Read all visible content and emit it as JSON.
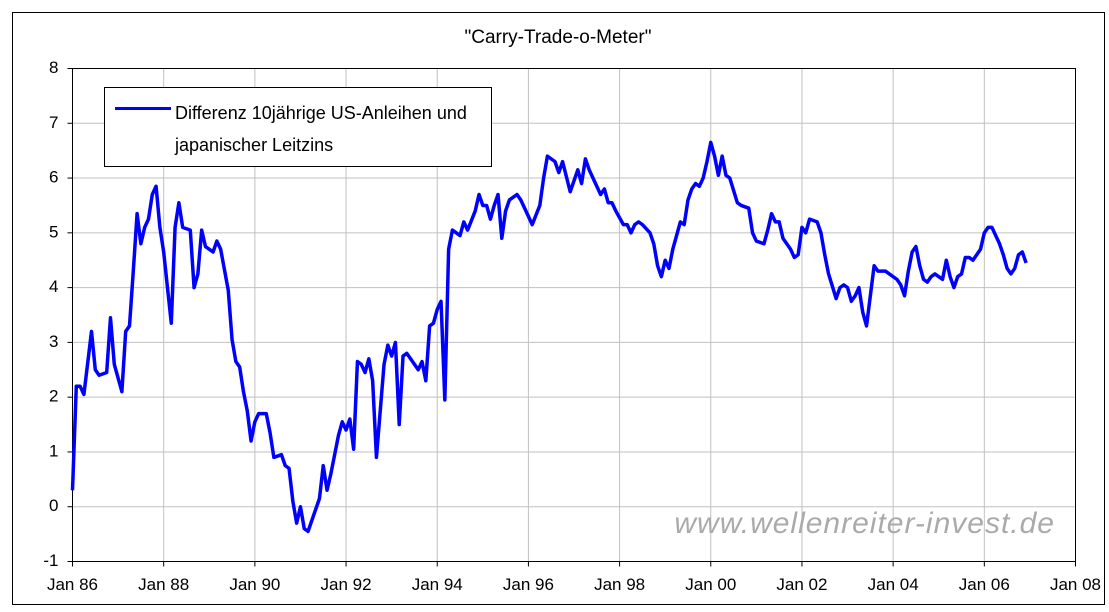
{
  "chart_data": {
    "type": "line",
    "title": "\"Carry-Trade-o-Meter\"",
    "annotation": "www.wellenreiter-invest.de",
    "x": [
      "1986-01",
      "1986-02",
      "1986-03",
      "1986-04",
      "1986-06",
      "1986-07",
      "1986-08",
      "1986-10",
      "1986-11",
      "1986-12",
      "1987-02",
      "1987-03",
      "1987-04",
      "1987-05",
      "1987-06",
      "1987-07",
      "1987-08",
      "1987-09",
      "1987-10",
      "1987-11",
      "1987-12",
      "1988-01",
      "1988-03",
      "1988-04",
      "1988-05",
      "1988-06",
      "1988-08",
      "1988-09",
      "1988-10",
      "1988-11",
      "1988-12",
      "1989-02",
      "1989-03",
      "1989-04",
      "1989-06",
      "1989-07",
      "1989-08",
      "1989-09",
      "1989-10",
      "1989-11",
      "1989-12",
      "1990-01",
      "1990-02",
      "1990-04",
      "1990-05",
      "1990-06",
      "1990-08",
      "1990-09",
      "1990-10",
      "1990-11",
      "1990-12",
      "1991-01",
      "1991-02",
      "1991-03",
      "1991-05",
      "1991-06",
      "1991-07",
      "1991-08",
      "1991-09",
      "1991-10",
      "1991-11",
      "1991-12",
      "1992-01",
      "1992-02",
      "1992-03",
      "1992-04",
      "1992-05",
      "1992-06",
      "1992-07",
      "1992-08",
      "1992-09",
      "1992-11",
      "1992-12",
      "1993-01",
      "1993-02",
      "1993-03",
      "1993-04",
      "1993-05",
      "1993-07",
      "1993-08",
      "1993-09",
      "1993-10",
      "1993-11",
      "1993-12",
      "1994-01",
      "1994-02",
      "1994-03",
      "1994-04",
      "1994-05",
      "1994-07",
      "1994-08",
      "1994-09",
      "1994-11",
      "1994-12",
      "1995-01",
      "1995-02",
      "1995-03",
      "1995-04",
      "1995-05",
      "1995-06",
      "1995-07",
      "1995-08",
      "1995-10",
      "1995-11",
      "1996-01",
      "1996-02",
      "1996-04",
      "1996-05",
      "1996-06",
      "1996-08",
      "1996-09",
      "1996-10",
      "1996-12",
      "1997-01",
      "1997-02",
      "1997-03",
      "1997-04",
      "1997-05",
      "1997-07",
      "1997-08",
      "1997-09",
      "1997-10",
      "1997-11",
      "1997-12",
      "1998-02",
      "1998-03",
      "1998-04",
      "1998-05",
      "1998-06",
      "1998-07",
      "1998-09",
      "1998-10",
      "1998-11",
      "1998-12",
      "1999-01",
      "1999-02",
      "1999-03",
      "1999-05",
      "1999-06",
      "1999-07",
      "1999-08",
      "1999-09",
      "1999-10",
      "1999-11",
      "1999-12",
      "2000-01",
      "2000-02",
      "2000-03",
      "2000-04",
      "2000-05",
      "2000-06",
      "2000-08",
      "2000-09",
      "2000-11",
      "2000-12",
      "2001-01",
      "2001-03",
      "2001-04",
      "2001-05",
      "2001-06",
      "2001-07",
      "2001-08",
      "2001-10",
      "2001-11",
      "2001-12",
      "2002-01",
      "2002-02",
      "2002-03",
      "2002-05",
      "2002-06",
      "2002-07",
      "2002-08",
      "2002-10",
      "2002-11",
      "2002-12",
      "2003-01",
      "2003-02",
      "2003-03",
      "2003-04",
      "2003-05",
      "2003-06",
      "2003-07",
      "2003-08",
      "2003-09",
      "2003-11",
      "2003-12",
      "2004-02",
      "2004-03",
      "2004-04",
      "2004-05",
      "2004-06",
      "2004-07",
      "2004-08",
      "2004-09",
      "2004-10",
      "2004-11",
      "2004-12",
      "2005-02",
      "2005-03",
      "2005-04",
      "2005-05",
      "2005-06",
      "2005-07",
      "2005-08",
      "2005-09",
      "2005-10",
      "2005-12",
      "2006-01",
      "2006-02",
      "2006-03",
      "2006-05",
      "2006-06",
      "2006-07",
      "2006-08",
      "2006-09",
      "2006-10",
      "2006-11",
      "2006-12"
    ],
    "series": [
      {
        "name": "Differenz 10jährige US-Anleihen und japanischer Leitzins",
        "color": "#0000ff",
        "values": [
          0.3,
          2.2,
          2.2,
          2.05,
          3.2,
          2.5,
          2.4,
          2.45,
          3.45,
          2.6,
          2.1,
          3.2,
          3.3,
          4.3,
          5.35,
          4.8,
          5.1,
          5.25,
          5.7,
          5.85,
          5.1,
          4.65,
          3.35,
          5.1,
          5.55,
          5.1,
          5.05,
          4.0,
          4.25,
          5.05,
          4.75,
          4.65,
          4.85,
          4.7,
          3.95,
          3.05,
          2.65,
          2.55,
          2.1,
          1.75,
          1.2,
          1.55,
          1.7,
          1.7,
          1.35,
          0.9,
          0.95,
          0.75,
          0.7,
          0.1,
          -0.3,
          0,
          -0.4,
          -0.45,
          -0.05,
          0.15,
          0.75,
          0.3,
          0.6,
          0.95,
          1.3,
          1.55,
          1.4,
          1.6,
          1.05,
          2.65,
          2.6,
          2.45,
          2.7,
          2.3,
          0.9,
          2.6,
          2.95,
          2.75,
          3.0,
          1.5,
          2.75,
          2.8,
          2.6,
          2.5,
          2.65,
          2.3,
          3.3,
          3.35,
          3.6,
          3.75,
          1.95,
          4.7,
          5.05,
          4.95,
          5.2,
          5.05,
          5.4,
          5.7,
          5.5,
          5.5,
          5.25,
          5.5,
          5.7,
          4.9,
          5.4,
          5.6,
          5.7,
          5.6,
          5.3,
          5.15,
          5.5,
          6.0,
          6.4,
          6.3,
          6.1,
          6.3,
          5.75,
          5.95,
          6.15,
          5.9,
          6.35,
          6.15,
          5.85,
          5.7,
          5.8,
          5.55,
          5.55,
          5.4,
          5.15,
          5.15,
          5.0,
          5.15,
          5.2,
          5.15,
          5.0,
          4.8,
          4.4,
          4.2,
          4.5,
          4.35,
          4.7,
          5.2,
          5.15,
          5.6,
          5.8,
          5.9,
          5.85,
          6.0,
          6.3,
          6.65,
          6.4,
          6.05,
          6.4,
          6.05,
          6.0,
          5.55,
          5.5,
          5.45,
          5.0,
          4.85,
          4.8,
          5.05,
          5.35,
          5.2,
          5.2,
          4.9,
          4.7,
          4.55,
          4.6,
          5.1,
          5.0,
          5.25,
          5.2,
          5.0,
          4.6,
          4.25,
          3.8,
          4.0,
          4.05,
          4.0,
          3.75,
          3.85,
          4.0,
          3.55,
          3.3,
          3.85,
          4.4,
          4.3,
          4.3,
          4.25,
          4.15,
          4.05,
          3.85,
          4.3,
          4.65,
          4.75,
          4.4,
          4.15,
          4.1,
          4.2,
          4.25,
          4.15,
          4.5,
          4.2,
          4.0,
          4.2,
          4.25,
          4.55,
          4.55,
          4.5,
          4.7,
          5.0,
          5.1,
          5.1,
          4.8,
          4.6,
          4.35,
          4.25,
          4.35,
          4.6,
          4.65,
          4.45
        ]
      }
    ],
    "xlim": [
      "1986-01",
      "2008-01"
    ],
    "xticks": [
      {
        "value": "1986-01",
        "label": "Jan 86"
      },
      {
        "value": "1988-01",
        "label": "Jan 88"
      },
      {
        "value": "1990-01",
        "label": "Jan 90"
      },
      {
        "value": "1992-01",
        "label": "Jan 92"
      },
      {
        "value": "1994-01",
        "label": "Jan 94"
      },
      {
        "value": "1996-01",
        "label": "Jan 96"
      },
      {
        "value": "1998-01",
        "label": "Jan 98"
      },
      {
        "value": "2000-01",
        "label": "Jan 00"
      },
      {
        "value": "2002-01",
        "label": "Jan 02"
      },
      {
        "value": "2004-01",
        "label": "Jan 04"
      },
      {
        "value": "2006-01",
        "label": "Jan 06"
      },
      {
        "value": "2008-01",
        "label": "Jan 08"
      }
    ],
    "ylim": [
      -1,
      8
    ],
    "yticks": [
      -1,
      0,
      1,
      2,
      3,
      4,
      5,
      6,
      7,
      8
    ],
    "grid": true,
    "legend": "upper left"
  }
}
